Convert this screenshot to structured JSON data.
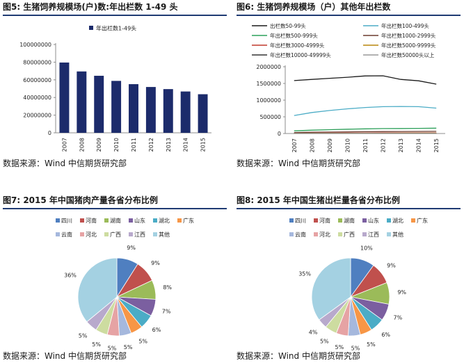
{
  "panels": {
    "fig5": {
      "title": "图5: 生猪饲养规模场(户)数:年出栏数 1-49 头",
      "source": "数据来源：Wind  中信期货研究部"
    },
    "fig6": {
      "title": "图6: 生猪饲养规模场（户）其他年出栏数",
      "source": "数据来源：Wind  中信期货研究部"
    },
    "fig7": {
      "title": "图7:  2015 年中国猪肉产量各省分布比例",
      "source": "数据来源：Wind  中信期货研究部"
    },
    "fig8": {
      "title": "图8: 2015 年中国生猪出栏量各省分布比例",
      "source": "数据来源：Wind  中信期货研究部"
    }
  },
  "colors": {
    "bar": "#1c2b6b",
    "rule": "#1f3b73",
    "axis": "#8c8c8c",
    "provinces": [
      "#4f7fc0",
      "#c0504d",
      "#9bbb59",
      "#7b5fa0",
      "#4bacc6",
      "#f79646",
      "#a5b8dd",
      "#e6a3a4",
      "#cddca0",
      "#b8a9cc",
      "#a4d1e2",
      "#93c4d6"
    ]
  },
  "chart_data": [
    {
      "id": "fig5",
      "type": "bar",
      "categories": [
        "2007",
        "2008",
        "2009",
        "2010",
        "2011",
        "2012",
        "2013",
        "2014",
        "2015"
      ],
      "series": [
        {
          "name": "年出栏数1-49头",
          "values": [
            79600000,
            69500000,
            64600000,
            58800000,
            55100000,
            51900000,
            49500000,
            46800000,
            43700000
          ]
        }
      ],
      "yticks": [
        "0",
        "20000000",
        "40000000",
        "60000000",
        "80000000",
        "100000000"
      ],
      "ylim": [
        0,
        100000000
      ],
      "legend_position": "top"
    },
    {
      "id": "fig6",
      "type": "line",
      "categories": [
        "2007",
        "2008",
        "2009",
        "2010",
        "2011",
        "2012",
        "2013",
        "2014",
        "2015"
      ],
      "series": [
        {
          "name": "出栏数50-99头",
          "color": "#1a1a1a",
          "values": [
            1585000,
            1620000,
            1655000,
            1685000,
            1725000,
            1730000,
            1620000,
            1580000,
            1480000
          ]
        },
        {
          "name": "年出栏数100-499头",
          "color": "#4bacc6",
          "values": [
            540000,
            630000,
            690000,
            740000,
            780000,
            805000,
            810000,
            805000,
            760000
          ]
        },
        {
          "name": "年出栏数500-999头",
          "color": "#2ca05a",
          "values": [
            80000,
            100000,
            115000,
            130000,
            140000,
            148000,
            150000,
            155000,
            160000
          ]
        },
        {
          "name": "年出栏数1000-2999头",
          "color": "#6b3a2e",
          "values": [
            30000,
            38000,
            44000,
            50000,
            55000,
            58000,
            60000,
            62000,
            64000
          ]
        },
        {
          "name": "年出栏数3000-4999头",
          "color": "#c0392b",
          "values": [
            8000,
            10000,
            12000,
            14000,
            15000,
            16000,
            17000,
            17500,
            18000
          ]
        },
        {
          "name": "年出栏数5000-9999头",
          "color": "#b8860b",
          "values": [
            5000,
            6000,
            7000,
            8000,
            8500,
            9000,
            9500,
            10000,
            10500
          ]
        },
        {
          "name": "年出栏数10000-49999头",
          "color": "#333333",
          "values": [
            1500,
            1800,
            2000,
            2300,
            2500,
            2700,
            2900,
            3000,
            3100
          ]
        },
        {
          "name": "年出栏数50000头以上",
          "color": "#999999",
          "values": [
            100,
            120,
            140,
            160,
            180,
            200,
            220,
            240,
            260
          ]
        }
      ],
      "yticks": [
        "0",
        "500000",
        "1000000",
        "1500000",
        "2000000"
      ],
      "ylim": [
        0,
        2000000
      ],
      "legend_position": "top"
    },
    {
      "id": "fig7",
      "type": "pie",
      "labels": [
        "四川",
        "河南",
        "湖南",
        "山东",
        "湖北",
        "广东",
        "云南",
        "河北",
        "广西",
        "江西",
        "其他"
      ],
      "values": [
        9,
        9,
        8,
        7,
        6,
        5,
        5,
        5,
        5,
        5,
        36
      ],
      "slice_labels": [
        "9%",
        "9%",
        "8%",
        "7%",
        "6%",
        "5%",
        "5%",
        "5%",
        "5%",
        "5%",
        "36%"
      ],
      "legend_position": "top"
    },
    {
      "id": "fig8",
      "type": "pie",
      "labels": [
        "四川",
        "河南",
        "湖南",
        "山东",
        "湖北",
        "广东",
        "云南",
        "河北",
        "广西",
        "江西",
        "其他"
      ],
      "values": [
        10,
        9,
        9,
        7,
        6,
        5,
        5,
        5,
        5,
        4,
        35
      ],
      "slice_labels": [
        "10%",
        "9%",
        "9%",
        "7%",
        "6%",
        "5%",
        "5%",
        "5%",
        "5%",
        "4%",
        "35%"
      ],
      "legend_position": "top"
    }
  ]
}
